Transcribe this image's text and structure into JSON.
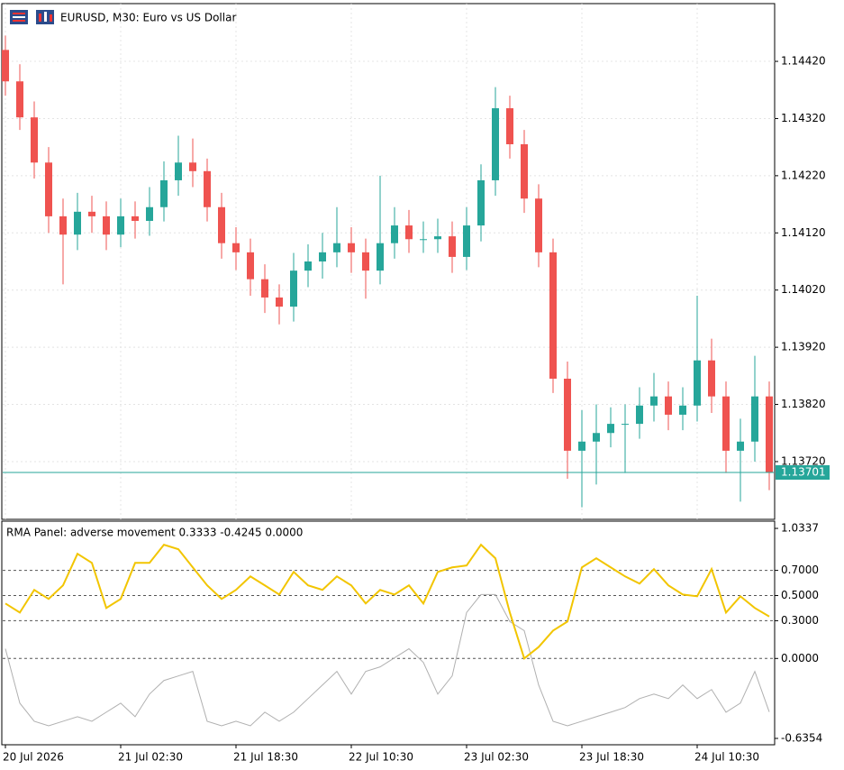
{
  "chart_data": [
    {
      "type": "candlestick",
      "title": "EURUSD, M30:  Euro vs US Dollar",
      "categories": [
        "20 Jul 2026",
        null,
        null,
        null,
        null,
        null,
        null,
        null,
        "21 Jul 02:30",
        null,
        null,
        null,
        null,
        null,
        null,
        null,
        "21 Jul 18:30",
        null,
        null,
        null,
        null,
        null,
        null,
        null,
        "22 Jul 10:30",
        null,
        null,
        null,
        null,
        null,
        null,
        null,
        "23 Jul 02:30",
        null,
        null,
        null,
        null,
        null,
        null,
        null,
        "23 Jul 18:30",
        null,
        null,
        null,
        null,
        null,
        null,
        null,
        "24 Jul 10:30",
        null,
        null,
        null,
        null,
        null
      ],
      "open": [
        1.1444,
        1.14385,
        1.14322,
        1.14243,
        1.14149,
        1.14117,
        1.14157,
        1.14149,
        1.14117,
        1.14149,
        1.14141,
        1.14165,
        1.14212,
        1.14243,
        1.14228,
        1.14165,
        1.14102,
        1.14086,
        1.14039,
        1.14007,
        1.13991,
        1.14054,
        1.1407,
        1.14086,
        1.14102,
        1.14086,
        1.14054,
        1.14102,
        1.14133,
        1.14109,
        1.14109,
        1.14114,
        1.14078,
        1.14133,
        1.14212,
        1.14338,
        1.14275,
        1.1418,
        1.14086,
        1.13865,
        1.13739,
        1.13755,
        1.1377,
        1.13786,
        1.13786,
        1.13818,
        1.13834,
        1.13802,
        1.13818,
        1.13897,
        1.13834,
        1.13739,
        1.13755,
        1.13834
      ],
      "high": [
        1.14465,
        1.14415,
        1.1435,
        1.1427,
        1.1418,
        1.1419,
        1.14185,
        1.14175,
        1.1418,
        1.14175,
        1.142,
        1.14245,
        1.1429,
        1.14285,
        1.1425,
        1.1419,
        1.1413,
        1.1411,
        1.14065,
        1.1403,
        1.14085,
        1.141,
        1.1412,
        1.14165,
        1.1413,
        1.1411,
        1.1422,
        1.14165,
        1.1416,
        1.1414,
        1.14145,
        1.1414,
        1.14165,
        1.1424,
        1.14375,
        1.1436,
        1.143,
        1.14205,
        1.1411,
        1.13895,
        1.1381,
        1.1382,
        1.13815,
        1.1382,
        1.1385,
        1.13875,
        1.1386,
        1.1385,
        1.1401,
        1.13935,
        1.1386,
        1.13795,
        1.13905,
        1.1386
      ],
      "low": [
        1.1436,
        1.143,
        1.14215,
        1.1412,
        1.1403,
        1.1409,
        1.1412,
        1.1409,
        1.14095,
        1.1411,
        1.14115,
        1.1414,
        1.14185,
        1.142,
        1.1414,
        1.14075,
        1.14055,
        1.1401,
        1.1398,
        1.1396,
        1.13965,
        1.14025,
        1.1404,
        1.1406,
        1.1405,
        1.14005,
        1.1403,
        1.14075,
        1.14085,
        1.14085,
        1.14085,
        1.1405,
        1.14055,
        1.14105,
        1.14185,
        1.1425,
        1.14155,
        1.1406,
        1.1384,
        1.1369,
        1.1364,
        1.1368,
        1.13745,
        1.137,
        1.1376,
        1.1379,
        1.13775,
        1.13775,
        1.1379,
        1.13805,
        1.137,
        1.1365,
        1.1372,
        1.1367
      ],
      "close": [
        1.14385,
        1.14322,
        1.14243,
        1.14149,
        1.14117,
        1.14157,
        1.14149,
        1.14117,
        1.14149,
        1.14141,
        1.14165,
        1.14212,
        1.14243,
        1.14228,
        1.14165,
        1.14102,
        1.14086,
        1.14039,
        1.14007,
        1.13991,
        1.14054,
        1.1407,
        1.14086,
        1.14102,
        1.14086,
        1.14054,
        1.14102,
        1.14133,
        1.14109,
        1.14109,
        1.14114,
        1.14078,
        1.14133,
        1.14212,
        1.14338,
        1.14275,
        1.1418,
        1.14086,
        1.13865,
        1.13739,
        1.13755,
        1.1377,
        1.13786,
        1.13786,
        1.13818,
        1.13834,
        1.13802,
        1.13818,
        1.13897,
        1.13834,
        1.13739,
        1.13755,
        1.13834,
        1.13701
      ],
      "up_color": "#26a69a",
      "down_color": "#ef5350",
      "ylim": [
        1.13619,
        1.14521
      ],
      "yticks": [
        {
          "value": 1.1442,
          "label": "1.14420"
        },
        {
          "value": 1.1432,
          "label": "1.14320"
        },
        {
          "value": 1.1422,
          "label": "1.14220"
        },
        {
          "value": 1.1412,
          "label": "1.14120"
        },
        {
          "value": 1.1402,
          "label": "1.14020"
        },
        {
          "value": 1.1392,
          "label": "1.13920"
        },
        {
          "value": 1.1382,
          "label": "1.13820"
        },
        {
          "value": 1.1372,
          "label": "1.13720"
        }
      ],
      "last_price": {
        "value": 1.13701,
        "label": "1.13701"
      },
      "last_color": "#26a69a",
      "grid": true
    },
    {
      "type": "line",
      "title": "RMA Panel: adverse movement 0.3333 -0.4245 0.0000",
      "series": [
        {
          "color": "#f2c500",
          "values": [
            0.437,
            0.365,
            0.545,
            0.473,
            0.581,
            0.832,
            0.76,
            0.401,
            0.473,
            0.76,
            0.76,
            0.904,
            0.868,
            0.724,
            0.581,
            0.473,
            0.545,
            0.652,
            0.581,
            0.508,
            0.688,
            0.581,
            0.545,
            0.652,
            0.581,
            0.437,
            0.545,
            0.508,
            0.581,
            0.437,
            0.688,
            0.724,
            0.739,
            0.904,
            0.796,
            0.365,
            0,
            0.091,
            0.221,
            0.293,
            0.724,
            0.796,
            0.724,
            0.652,
            0.595,
            0.71,
            0.581,
            0.508,
            0.494,
            0.71,
            0.365,
            0.494,
            0.401,
            0.3333
          ]
        },
        {
          "color": "#b0b0b0",
          "values": [
            0.077,
            -0.355,
            -0.499,
            -0.535,
            -0.499,
            -0.463,
            -0.499,
            -0.427,
            -0.355,
            -0.463,
            -0.283,
            -0.175,
            -0.139,
            -0.103,
            -0.499,
            -0.535,
            -0.499,
            -0.535,
            -0.427,
            -0.499,
            -0.427,
            -0.319,
            -0.211,
            -0.103,
            -0.283,
            -0.103,
            -0.067,
            0.005,
            0.077,
            -0.031,
            -0.283,
            -0.139,
            0.365,
            0.508,
            0.508,
            0.293,
            0.221,
            -0.211,
            -0.499,
            -0.535,
            -0.499,
            -0.463,
            -0.427,
            -0.39,
            -0.319,
            -0.283,
            -0.319,
            -0.211,
            -0.319,
            -0.247,
            -0.427,
            -0.355,
            -0.103,
            -0.4245
          ]
        }
      ],
      "ylim": [
        -0.6858,
        1.0913
      ],
      "yticks": [
        {
          "value": 1.0337,
          "label": "1.0337"
        },
        {
          "value": 0.7,
          "label": "0.7000"
        },
        {
          "value": 0.5,
          "label": "0.5000"
        },
        {
          "value": 0.3,
          "label": "0.3000"
        },
        {
          "value": 0,
          "label": "0.0000"
        },
        {
          "value": -0.6354,
          "label": "-0.6354"
        }
      ],
      "levels": [
        0.7,
        0.5,
        0.3,
        0
      ]
    }
  ]
}
